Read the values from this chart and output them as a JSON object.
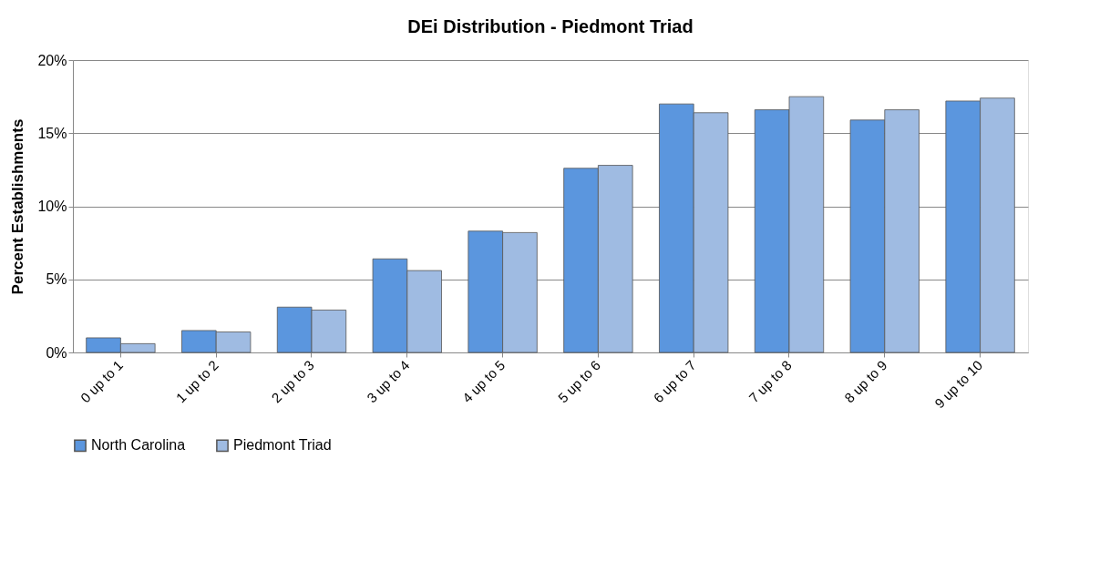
{
  "chart_data": {
    "type": "bar",
    "title": "DEi Distribution - Piedmont Triad",
    "ylabel": "Percent Establishments",
    "categories": [
      "0 up to 1",
      "1 up to 2",
      "2 up to 3",
      "3 up to 4",
      "4 up to 5",
      "5 up to 6",
      "6 up to 7",
      "7 up to 8",
      "8 up to 9",
      "9 up to 10"
    ],
    "series": [
      {
        "name": "North Carolina",
        "color": "#5b96de",
        "values": [
          1.0,
          1.5,
          3.1,
          6.4,
          8.3,
          12.6,
          17.0,
          16.6,
          15.9,
          17.2
        ]
      },
      {
        "name": "Piedmont Triad",
        "color": "#9fbbe2",
        "values": [
          0.6,
          1.4,
          2.9,
          5.6,
          8.2,
          12.8,
          16.4,
          17.5,
          16.6,
          17.4
        ]
      }
    ],
    "ylim": [
      0,
      20
    ],
    "yticks": [
      {
        "value": 0,
        "label": "0%"
      },
      {
        "value": 5,
        "label": "5%"
      },
      {
        "value": 10,
        "label": "10%"
      },
      {
        "value": 15,
        "label": "15%"
      },
      {
        "value": 20,
        "label": "20%"
      }
    ],
    "grid": "y",
    "legend": "bottom"
  }
}
